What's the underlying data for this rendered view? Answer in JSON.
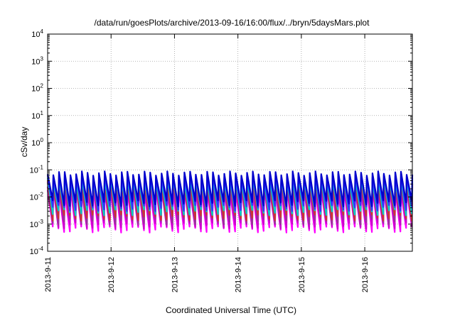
{
  "chart_data": {
    "type": "line",
    "title": "/data/run/goesPlots/archive/2013-09-16/16:00/flux/../bryn/5daysMars.plot",
    "xlabel": "Coordinated Universal Time (UTC)",
    "ylabel": "cSv/day",
    "y_scale": "log",
    "ylim": [
      0.0001,
      10000
    ],
    "y_ticks": [
      {
        "base": "10",
        "exp": "-4"
      },
      {
        "base": "10",
        "exp": "-3"
      },
      {
        "base": "10",
        "exp": "-2"
      },
      {
        "base": "10",
        "exp": "-1"
      },
      {
        "base": "10",
        "exp": "0"
      },
      {
        "base": "10",
        "exp": "1"
      },
      {
        "base": "10",
        "exp": "2"
      },
      {
        "base": "10",
        "exp": "3"
      },
      {
        "base": "10",
        "exp": "4"
      }
    ],
    "x_ticks": [
      "2013-9-11",
      "2013-9-12",
      "2013-9-13",
      "2013-9-14",
      "2013-9-15",
      "2013-9-16"
    ],
    "xlim": [
      "2013-09-11T00:00",
      "2013-09-16T18:00"
    ],
    "grid": true,
    "pattern": {
      "cycles": 64,
      "bands": [
        {
          "color": "#ff00ff",
          "peak": 0.018,
          "trough": 0.00065
        },
        {
          "color": "#cc00cc",
          "peak": 0.022,
          "trough": 0.0009
        },
        {
          "color": "#993399",
          "peak": 0.03,
          "trough": 0.0013
        },
        {
          "color": "#cc3333",
          "peak": 0.035,
          "trough": 0.0018
        },
        {
          "color": "#00cccc",
          "peak": 0.045,
          "trough": 0.0028
        },
        {
          "color": "#3333ff",
          "peak": 0.06,
          "trough": 0.004
        },
        {
          "color": "#0000cc",
          "peak": 0.075,
          "trough": 0.006
        }
      ]
    }
  }
}
